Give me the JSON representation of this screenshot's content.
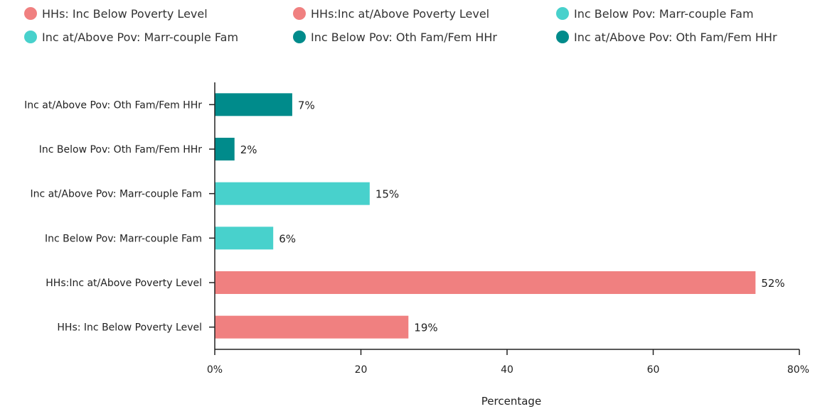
{
  "chart_data": {
    "type": "bar",
    "orientation": "horizontal",
    "categories": [
      "HHs: Inc Below Poverty Level",
      "HHs:Inc at/Above Poverty Level",
      "Inc Below Pov: Marr-couple Fam",
      "Inc at/Above Pov: Marr-couple Fam",
      "Inc Below Pov: Oth Fam/Fem HHr",
      "Inc at/Above Pov: Oth Fam/Fem HHr"
    ],
    "values": [
      26.5,
      74,
      8,
      21.2,
      2.7,
      10.6
    ],
    "value_labels": [
      "19%",
      "52%",
      "6%",
      "15%",
      "2%",
      "7%"
    ],
    "bar_colors": [
      "#f08080",
      "#f08080",
      "#48d1cc",
      "#48d1cc",
      "#008b8b",
      "#008b8b"
    ],
    "legend": [
      {
        "label": "HHs: Inc Below Poverty Level",
        "color": "#f08080"
      },
      {
        "label": "HHs:Inc at/Above Poverty Level",
        "color": "#f08080"
      },
      {
        "label": "Inc Below Pov: Marr-couple Fam",
        "color": "#48d1cc"
      },
      {
        "label": "Inc at/Above Pov: Marr-couple Fam",
        "color": "#48d1cc"
      },
      {
        "label": "Inc Below Pov: Oth Fam/Fem HHr",
        "color": "#008b8b"
      },
      {
        "label": "Inc at/Above Pov: Oth Fam/Fem HHr",
        "color": "#008b8b"
      }
    ],
    "legend_position": "top",
    "xlabel": "Percentage",
    "ylabel": "",
    "xlim": [
      0,
      80
    ],
    "xticks": [
      0,
      20,
      40,
      60,
      80
    ],
    "xtick_labels": [
      "0%",
      "20",
      "40",
      "60",
      "80%"
    ],
    "grid": false
  }
}
